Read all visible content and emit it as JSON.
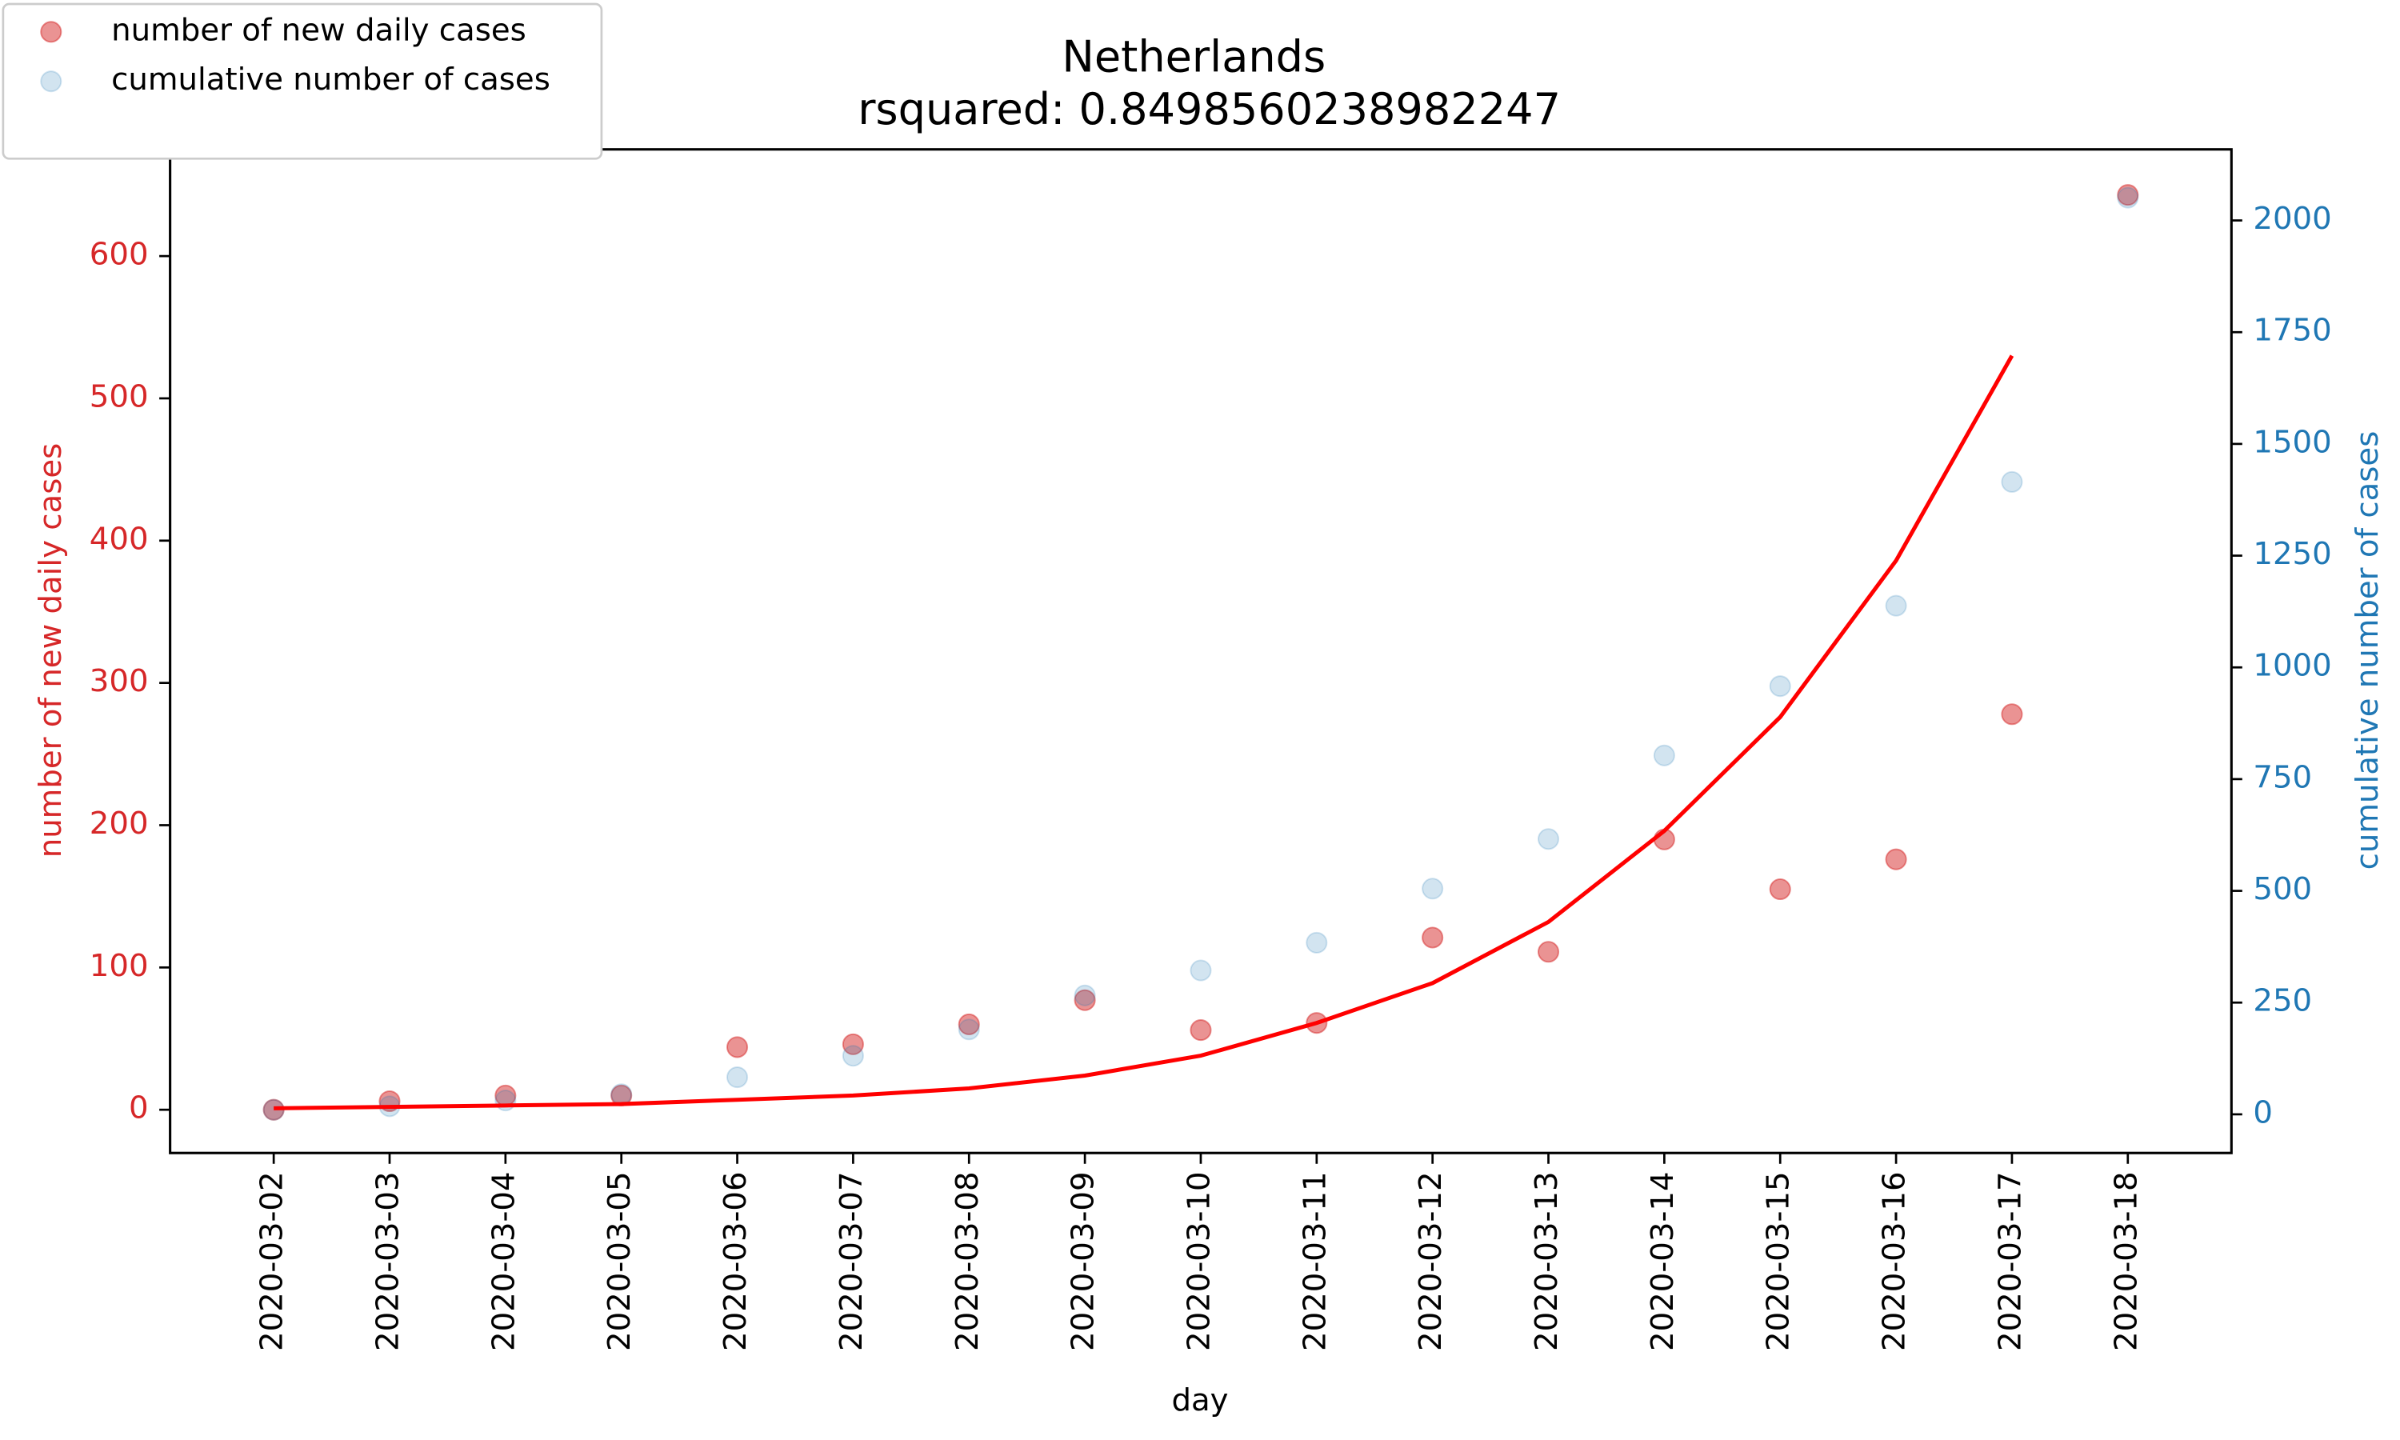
{
  "chart_data": {
    "type": "scatter",
    "title": "Netherlands",
    "subtitle": "rsquared: 0.8498560238982247",
    "x_label": "day",
    "y_label": "number of new daily cases",
    "y2_label": "cumulative number of cases",
    "categories": [
      "2020-03-02",
      "2020-03-03",
      "2020-03-04",
      "2020-03-05",
      "2020-03-06",
      "2020-03-07",
      "2020-03-08",
      "2020-03-09",
      "2020-03-10",
      "2020-03-11",
      "2020-03-12",
      "2020-03-13",
      "2020-03-14",
      "2020-03-15",
      "2020-03-16",
      "2020-03-17",
      "2020-03-18"
    ],
    "series": [
      {
        "name": "number of new daily cases",
        "type": "scatter",
        "color": "#d62728",
        "opacity": 0.5,
        "values": [
          0,
          6,
          10,
          10,
          44,
          46,
          60,
          77,
          56,
          61,
          121,
          111,
          190,
          155,
          176,
          278,
          643
        ]
      },
      {
        "name": "cumulative number of cases",
        "type": "scatter",
        "color": "#1f77b4",
        "opacity": 0.2,
        "axis": "y2",
        "values": [
          10,
          18,
          31,
          45,
          83,
          131,
          190,
          266,
          322,
          384,
          505,
          616,
          803,
          958,
          1138,
          1415,
          2051
        ]
      },
      {
        "type": "line",
        "color": "#ff0000",
        "opacity": 1,
        "values": [
          1,
          2,
          3,
          4,
          7,
          10,
          15,
          24,
          38,
          61,
          89,
          132,
          196,
          276,
          386,
          530,
          null
        ]
      }
    ],
    "ylim": [
      -30.4,
      675
    ],
    "yticks": [
      0,
      100,
      200,
      300,
      400,
      500,
      600
    ],
    "y2lim": [
      -86.5,
      2159
    ],
    "y2ticks": [
      0,
      250,
      500,
      750,
      1000,
      1250,
      1500,
      1750,
      2000
    ],
    "y_color": "#d62728",
    "y2_color": "#1f77b4",
    "legend": "upper left",
    "grid": false
  }
}
